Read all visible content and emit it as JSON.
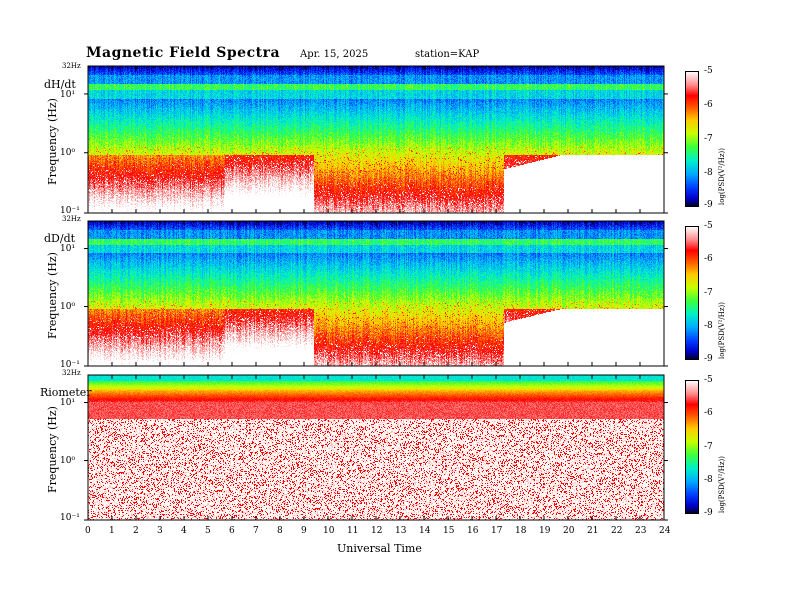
{
  "header": {
    "title": "Magnetic  Field  Spectra",
    "date": "Apr. 15, 2025",
    "station": "station=KAP"
  },
  "chart_data": {
    "type": "heatmap",
    "xlabel": "Universal Time",
    "xlim": [
      0,
      24
    ],
    "x_ticks": [
      "0",
      "1",
      "2",
      "3",
      "4",
      "5",
      "6",
      "7",
      "8",
      "9",
      "10",
      "11",
      "12",
      "13",
      "14",
      "15",
      "16",
      "17",
      "18",
      "19",
      "20",
      "21",
      "22",
      "23",
      "24"
    ],
    "colorbar": {
      "label": "log(PSD(V²/Hz))",
      "ticks": [
        "-5",
        "-6",
        "-7",
        "-8",
        "-9"
      ],
      "range": [
        -9,
        -5
      ],
      "colormap": [
        "#000033",
        "#0000ff",
        "#00aaff",
        "#00ffaa",
        "#33ff00",
        "#ccff00",
        "#ffaa00",
        "#ff0000",
        "#ffcccc",
        "#ffffff"
      ]
    },
    "panels": [
      {
        "name": "dH/dt",
        "ylabel": "Frequency  (Hz)",
        "top_label": "32Hz",
        "y_ticks": [
          "10¹",
          "10⁰",
          "10⁻¹"
        ],
        "yscale": "log"
      },
      {
        "name": "dD/dt",
        "ylabel": "Frequency  (Hz)",
        "top_label": "32Hz",
        "y_ticks": [
          "10¹",
          "10⁰",
          "10⁻¹"
        ],
        "yscale": "log"
      },
      {
        "name": "Riometer",
        "ylabel": "Frequency  (Hz)",
        "top_label": "32Hz",
        "y_ticks": [
          "10¹",
          "10⁰",
          "10⁻¹"
        ],
        "yscale": "log"
      }
    ]
  }
}
